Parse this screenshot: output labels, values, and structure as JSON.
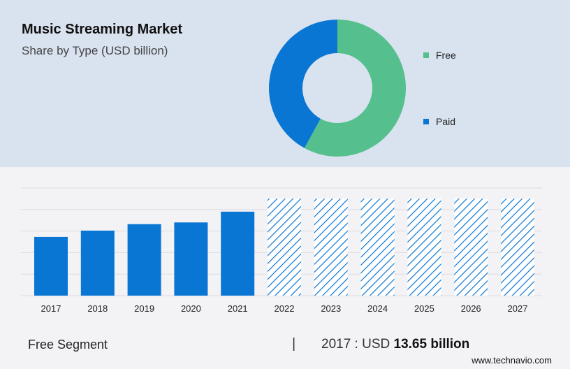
{
  "header": {
    "title": "Music Streaming Market",
    "subtitle": "Share by Type (USD billion)"
  },
  "colors": {
    "free": "#55c08e",
    "paid": "#0a76d4",
    "bar": "#0a76d4",
    "forecast_hatch": "#0a76d4",
    "top_panel": "#d9e2ef"
  },
  "chart_data": [
    {
      "type": "pie",
      "variant": "donut",
      "labels": [
        "Free",
        "Paid"
      ],
      "values": [
        58,
        42
      ],
      "legend_position": "right"
    },
    {
      "type": "bar",
      "categories": [
        "2017",
        "2018",
        "2019",
        "2020",
        "2021",
        "2022",
        "2023",
        "2024",
        "2025",
        "2026",
        "2027"
      ],
      "values": [
        13.65,
        15.1,
        16.6,
        17.0,
        19.5,
        22.5,
        22.5,
        22.5,
        22.5,
        22.5,
        22.5
      ],
      "forecast_from": "2022",
      "ylim": [
        0,
        25
      ],
      "grid": true
    }
  ],
  "footer": {
    "segment_label": "Free Segment",
    "divider": "|",
    "value_prefix": "2017 : USD",
    "value_bold": "13.65 billion",
    "credit": "www.technavio.com"
  }
}
